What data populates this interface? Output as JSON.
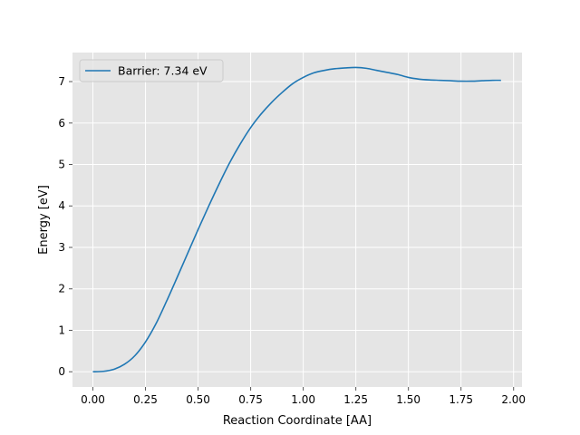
{
  "chart_data": {
    "type": "line",
    "title": "",
    "xlabel": "Reaction Coordinate [AA]",
    "ylabel": "Energy [eV]",
    "xlim": [
      -0.097,
      2.04
    ],
    "ylim": [
      -0.367,
      7.7
    ],
    "xticks": [
      0.0,
      0.25,
      0.5,
      0.75,
      1.0,
      1.25,
      1.5,
      1.75,
      2.0
    ],
    "xtick_labels": [
      "0.00",
      "0.25",
      "0.50",
      "0.75",
      "1.00",
      "1.25",
      "1.50",
      "1.75",
      "2.00"
    ],
    "yticks": [
      0,
      1,
      2,
      3,
      4,
      5,
      6,
      7
    ],
    "ytick_labels": [
      "0",
      "1",
      "2",
      "3",
      "4",
      "5",
      "6",
      "7"
    ],
    "grid": true,
    "legend_position": "upper-left",
    "style": {
      "background": "#e5e5e5",
      "grid_color": "#ffffff",
      "line_color": "#1f77b4"
    },
    "series": [
      {
        "name": "Barrier: 7.34 eV",
        "x": [
          0.0,
          0.05,
          0.1,
          0.15,
          0.2,
          0.25,
          0.3,
          0.35,
          0.4,
          0.45,
          0.5,
          0.55,
          0.6,
          0.65,
          0.7,
          0.75,
          0.8,
          0.85,
          0.9,
          0.95,
          1.0,
          1.05,
          1.1,
          1.15,
          1.2,
          1.25,
          1.3,
          1.35,
          1.4,
          1.45,
          1.5,
          1.55,
          1.6,
          1.65,
          1.7,
          1.75,
          1.8,
          1.85,
          1.9,
          1.94
        ],
        "values": [
          0.0,
          0.01,
          0.06,
          0.18,
          0.39,
          0.72,
          1.16,
          1.7,
          2.27,
          2.85,
          3.43,
          3.99,
          4.53,
          5.04,
          5.49,
          5.89,
          6.22,
          6.5,
          6.74,
          6.95,
          7.1,
          7.21,
          7.27,
          7.31,
          7.33,
          7.34,
          7.32,
          7.27,
          7.22,
          7.17,
          7.1,
          7.06,
          7.04,
          7.03,
          7.02,
          7.01,
          7.01,
          7.02,
          7.03,
          7.03
        ]
      }
    ]
  }
}
